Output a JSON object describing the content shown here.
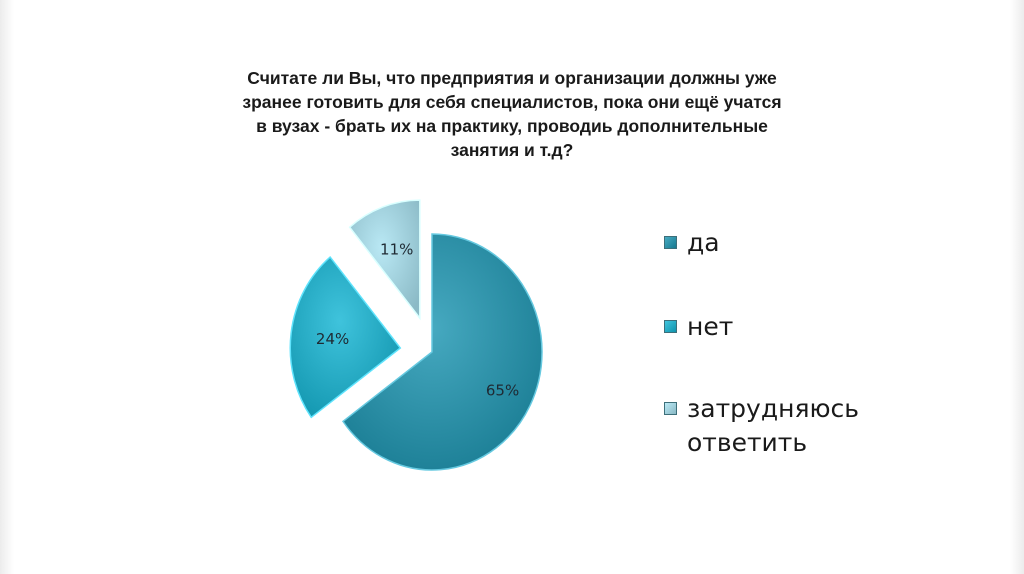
{
  "chart_data": {
    "type": "pie",
    "title_lines": [
      "Считате ли Вы, что предприятия и организации должны уже",
      "зранее готовить для себя специалистов, пока они ещё учатся",
      "в вузах - брать их на практику, проводиь дополнительные",
      "занятия и т.д?"
    ],
    "slices": [
      {
        "label": "да",
        "value": 65,
        "display": "65%",
        "color": "#2a8da4"
      },
      {
        "label": "нет",
        "value": 24,
        "display": "24%",
        "color": "#23a7c0"
      },
      {
        "label": "затрудняюсь ответить",
        "value": 11,
        "display": "11%",
        "color": "#9dccd8"
      }
    ],
    "legend": {
      "placement": "right",
      "items": [
        {
          "label": "да",
          "color": "#2a8da4"
        },
        {
          "label": "нет",
          "color": "#23a7c0"
        },
        {
          "label": "затрудняюсь ответить",
          "color": "#9dccd8"
        }
      ]
    }
  }
}
